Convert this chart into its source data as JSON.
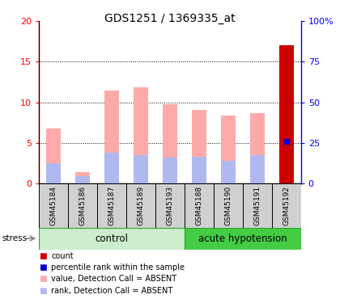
{
  "title": "GDS1251 / 1369335_at",
  "samples": [
    "GSM45184",
    "GSM45186",
    "GSM45187",
    "GSM45189",
    "GSM45193",
    "GSM45188",
    "GSM45190",
    "GSM45191",
    "GSM45192"
  ],
  "pink_bar_values": [
    6.8,
    1.4,
    11.5,
    11.9,
    9.8,
    9.1,
    8.4,
    8.7,
    17.0
  ],
  "blue_bar_values": [
    2.5,
    0.9,
    3.8,
    3.5,
    3.2,
    3.3,
    2.8,
    3.5,
    5.2
  ],
  "red_bar_values": [
    0.0,
    0.0,
    0.0,
    0.0,
    0.0,
    0.0,
    0.0,
    0.0,
    17.0
  ],
  "blue_dot_value": 5.2,
  "blue_dot_index": 8,
  "ylim_left": [
    0,
    20
  ],
  "ylim_right": [
    0,
    100
  ],
  "yticks_left": [
    0,
    5,
    10,
    15,
    20
  ],
  "yticks_right": [
    0,
    25,
    50,
    75,
    100
  ],
  "label_stress": "stress",
  "label_control": "control",
  "label_hypo": "acute hypotension",
  "pink_color": "#ffaaaa",
  "blue_bar_color": "#b0b8f0",
  "red_color": "#cc0000",
  "blue_color": "#0000cc",
  "bar_width": 0.5,
  "ctrl_count": 5,
  "hypo_count": 4,
  "ctrl_light": "#cceecc",
  "hypo_dark": "#44cc44",
  "sample_box_color": "#d0d0d0",
  "legend_labels": [
    "count",
    "percentile rank within the sample",
    "value, Detection Call = ABSENT",
    "rank, Detection Call = ABSENT"
  ],
  "legend_colors": [
    "#cc0000",
    "#0000cc",
    "#ffaaaa",
    "#b0b8f0"
  ]
}
